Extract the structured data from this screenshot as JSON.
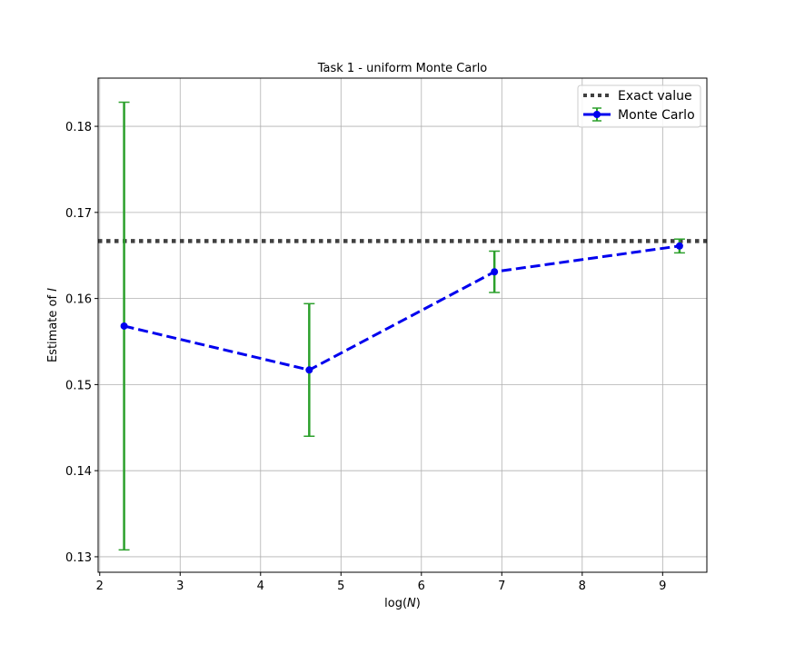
{
  "chart_data": {
    "type": "line",
    "title": "Task 1 - uniform Monte Carlo",
    "xlabel_prefix": "log(",
    "xlabel_var": "N",
    "xlabel_suffix": ")",
    "ylabel_prefix": "Estimate of ",
    "ylabel_var": "I",
    "xlim": [
      1.98,
      9.55
    ],
    "ylim": [
      0.1282,
      0.1856
    ],
    "xticks": [
      2,
      3,
      4,
      5,
      6,
      7,
      8,
      9
    ],
    "xtick_labels": [
      "2",
      "3",
      "4",
      "5",
      "6",
      "7",
      "8",
      "9"
    ],
    "yticks": [
      0.13,
      0.14,
      0.15,
      0.16,
      0.17,
      0.18
    ],
    "ytick_labels": [
      "0.13",
      "0.14",
      "0.15",
      "0.16",
      "0.17",
      "0.18"
    ],
    "grid": true,
    "legend_position": "top-right",
    "exact_value": {
      "name": "Exact value",
      "value": 0.16667,
      "color": "#404040",
      "style": "dotted"
    },
    "series": [
      {
        "name": "Monte Carlo",
        "x": [
          2.303,
          4.605,
          6.908,
          9.21
        ],
        "y": [
          0.1568,
          0.1517,
          0.1631,
          0.1661
        ],
        "error": [
          0.026,
          0.0077,
          0.0024,
          0.0008
        ],
        "line_color": "#0000ee",
        "errorbar_color": "#2ca02c",
        "style": "dashed"
      }
    ]
  }
}
